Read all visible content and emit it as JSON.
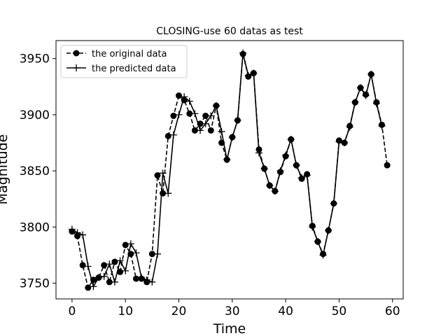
{
  "chart_data": {
    "type": "line",
    "title": "CLOSING-use 60 datas as test",
    "xlabel": "Time",
    "ylabel": "Magnitude",
    "xlim": [
      -3,
      62
    ],
    "ylim": [
      3736,
      3966
    ],
    "xticks": [
      0,
      10,
      20,
      30,
      40,
      50,
      60
    ],
    "yticks": [
      3750,
      3800,
      3850,
      3900,
      3950
    ],
    "grid": false,
    "legend_position": "top-left",
    "series": [
      {
        "name": "the original data",
        "style": "dashed",
        "marker": "circle",
        "color": "#000000",
        "x": [
          0,
          1,
          2,
          3,
          4,
          5,
          6,
          7,
          8,
          9,
          10,
          11,
          12,
          13,
          14,
          15,
          16,
          17,
          18,
          19,
          20,
          21,
          22,
          23,
          24,
          25,
          26,
          27,
          28,
          29,
          30,
          31,
          32,
          33,
          34,
          35,
          36,
          37,
          38,
          39,
          40,
          41,
          42,
          43,
          44,
          45,
          46,
          47,
          48,
          49,
          50,
          51,
          52,
          53,
          54,
          55,
          56,
          57,
          58,
          59
        ],
        "values": [
          3796,
          3792,
          3766,
          3746,
          3753,
          3755,
          3766,
          3751,
          3769,
          3760,
          3784,
          3776,
          3754,
          3754,
          3751,
          3776,
          3846,
          3830,
          3881,
          3899,
          3917,
          3913,
          3901,
          3886,
          3892,
          3899,
          3886,
          3908,
          3875,
          3860,
          3880,
          3895,
          3954,
          3934,
          3937,
          3869,
          3852,
          3837,
          3832,
          3849,
          3863,
          3878,
          3855,
          3843,
          3847,
          3801,
          3787,
          3776,
          3797,
          3821,
          3877,
          3875,
          3890,
          3911,
          3924,
          3918,
          3936,
          3911,
          3891,
          3855
        ]
      },
      {
        "name": "the predicted data",
        "style": "solid",
        "marker": "plus",
        "color": "#000000",
        "x": [
          0,
          1,
          2,
          3,
          4,
          5,
          6,
          7,
          8,
          9,
          10,
          11,
          12,
          13,
          14,
          15,
          16,
          17,
          18,
          19,
          20,
          21,
          22,
          23,
          24,
          25,
          26,
          27,
          28,
          29,
          30,
          31,
          32,
          33,
          34,
          35,
          36,
          37,
          38,
          39,
          40,
          41,
          42,
          43,
          44,
          45,
          46,
          47,
          48,
          49,
          50,
          51,
          52,
          53,
          54,
          55,
          56,
          57,
          58
        ],
        "values": [
          3798,
          3795,
          3793,
          3765,
          3747,
          3755,
          3756,
          3767,
          3751,
          3770,
          3761,
          3785,
          3777,
          3755,
          3753,
          3751,
          3776,
          3848,
          3830,
          3882,
          3900,
          3916,
          3912,
          3901,
          3886,
          3892,
          3899,
          3908,
          3885,
          3860,
          3880,
          3895,
          3955,
          3935,
          3937,
          3866,
          3852,
          3837,
          3832,
          3850,
          3864,
          3878,
          3855,
          3844,
          3846,
          3800,
          3787,
          3775,
          3797,
          3821,
          3876,
          3875,
          3889,
          3911,
          3924,
          3917,
          3936,
          3910,
          3890
        ]
      }
    ]
  }
}
